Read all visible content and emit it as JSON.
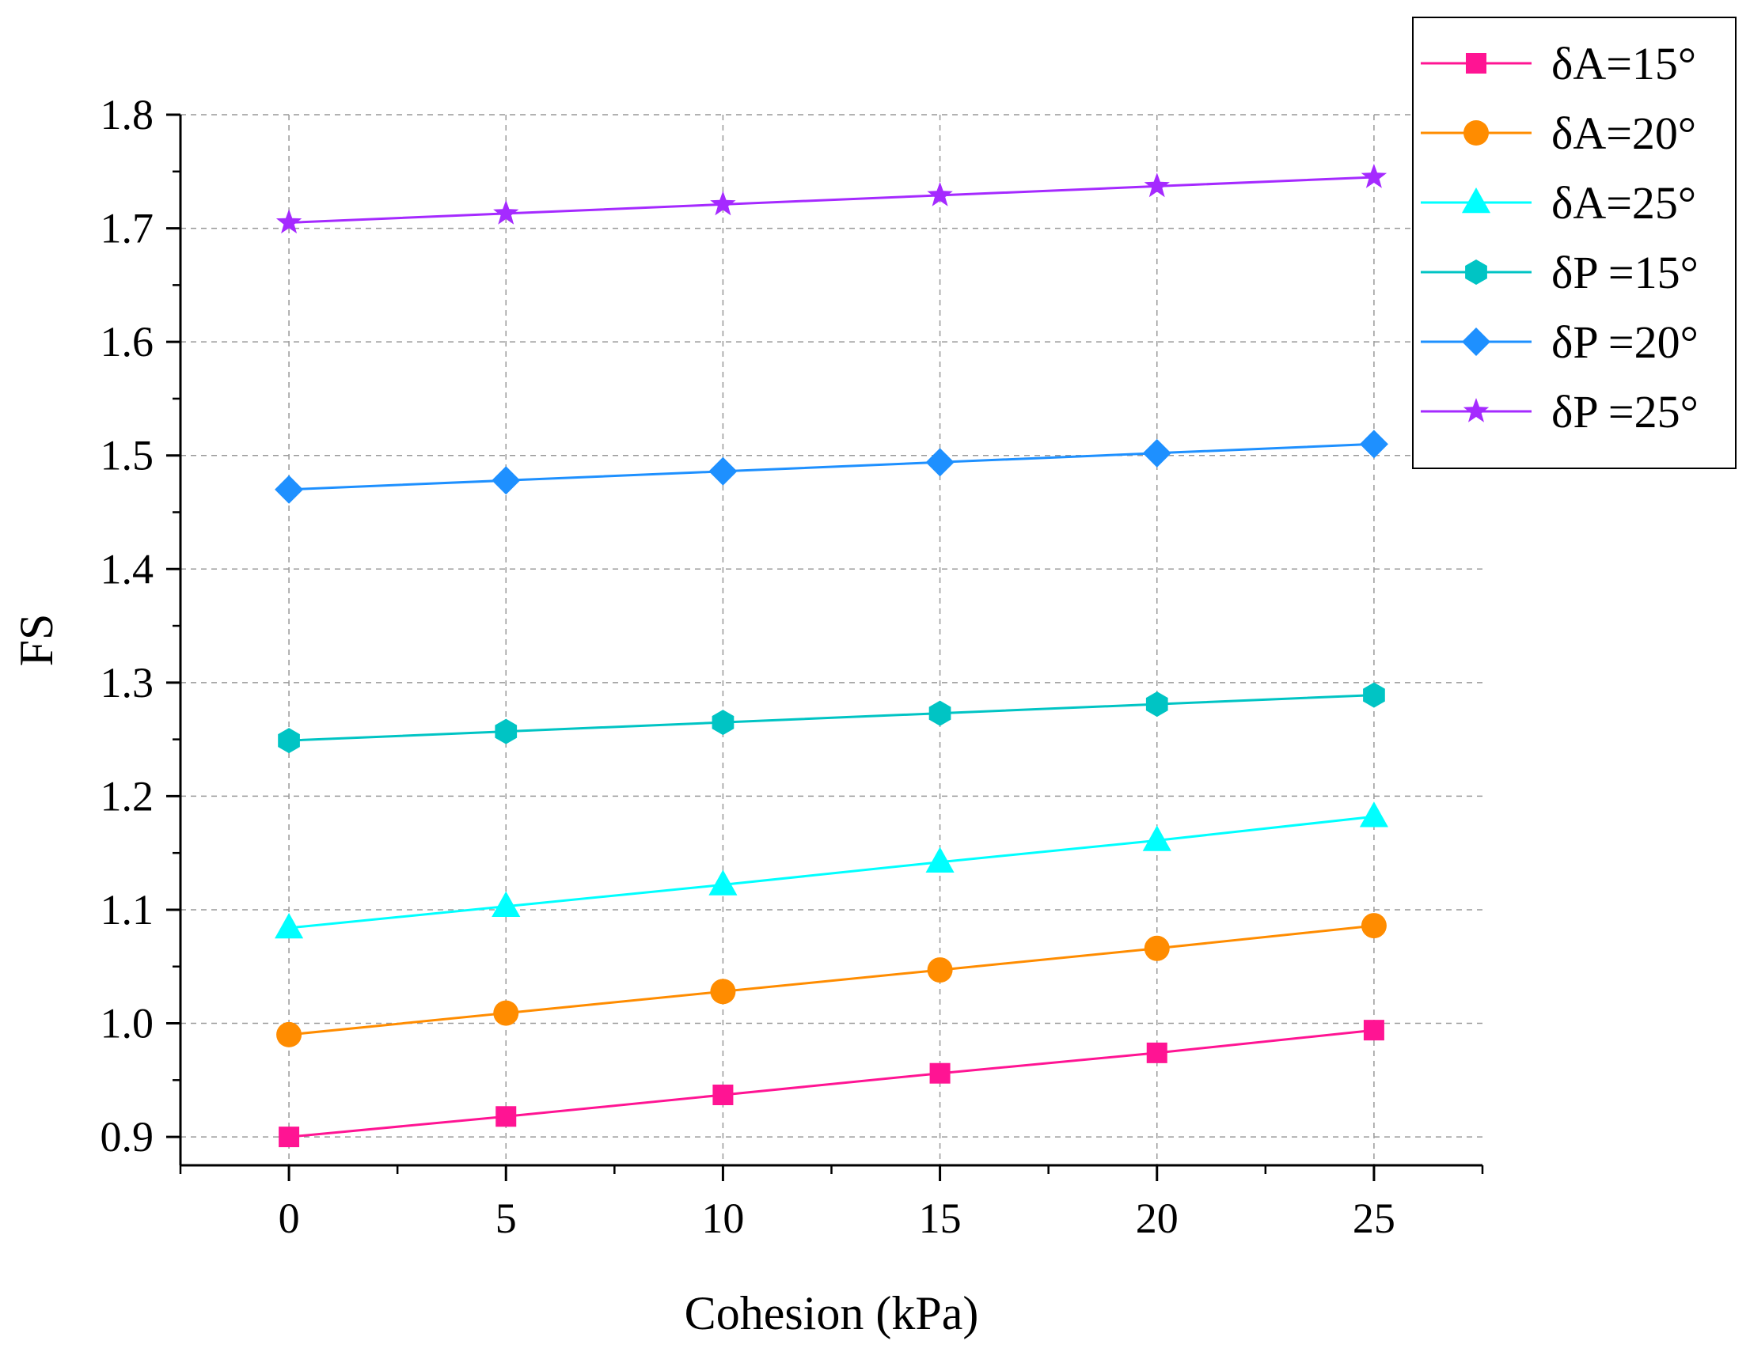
{
  "chart_data": {
    "type": "line",
    "title": "",
    "xlabel": "Cohesion (kPa)",
    "ylabel": "FS",
    "x": [
      0,
      5,
      10,
      15,
      20,
      25
    ],
    "xlim": [
      -2.5,
      27.5
    ],
    "ylim": [
      0.875,
      1.8
    ],
    "xticks": [
      0,
      5,
      10,
      15,
      20,
      25
    ],
    "xtick_labels": [
      "0",
      "5",
      "10",
      "15",
      "20",
      "25"
    ],
    "yticks": [
      0.9,
      1.0,
      1.1,
      1.2,
      1.3,
      1.4,
      1.5,
      1.6,
      1.7,
      1.8
    ],
    "ytick_labels": [
      "0.9",
      "1.0",
      "1.1",
      "1.2",
      "1.3",
      "1.4",
      "1.5",
      "1.6",
      "1.7",
      "1.8"
    ],
    "grid": true,
    "legend_position": "top-right",
    "series": [
      {
        "name": "δA=15°",
        "color": "#ff1493",
        "marker": "square",
        "values": [
          0.9,
          0.918,
          0.937,
          0.956,
          0.974,
          0.994
        ]
      },
      {
        "name": "δA=20°",
        "color": "#ff8c00",
        "marker": "circle",
        "values": [
          0.99,
          1.009,
          1.028,
          1.047,
          1.066,
          1.086
        ]
      },
      {
        "name": "δA=25°",
        "color": "#00ffff",
        "marker": "triangle",
        "values": [
          1.084,
          1.103,
          1.122,
          1.142,
          1.161,
          1.182
        ]
      },
      {
        "name": "δP =15°",
        "color": "#00c4c4",
        "marker": "hexagon",
        "values": [
          1.249,
          1.257,
          1.265,
          1.273,
          1.281,
          1.289
        ]
      },
      {
        "name": "δP =20°",
        "color": "#1e90ff",
        "marker": "diamond",
        "values": [
          1.47,
          1.478,
          1.486,
          1.494,
          1.502,
          1.51
        ]
      },
      {
        "name": "δP =25°",
        "color": "#a52aff",
        "marker": "star",
        "values": [
          1.705,
          1.713,
          1.721,
          1.729,
          1.737,
          1.745
        ]
      }
    ]
  }
}
